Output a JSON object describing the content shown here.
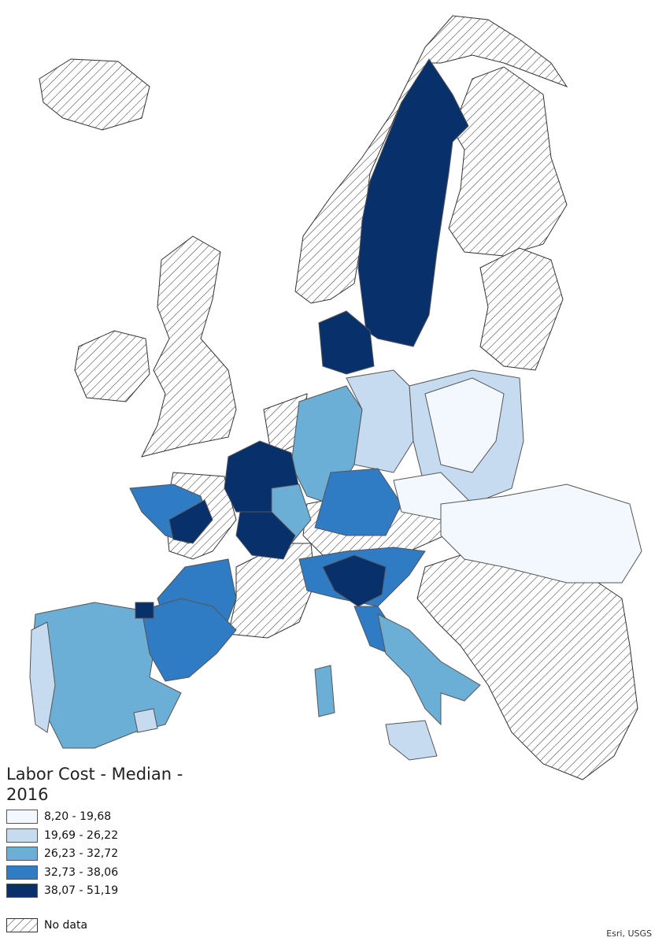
{
  "legend": {
    "title": "Labor Cost - Median - 2016",
    "classes": [
      {
        "label": "8,20 - 19,68",
        "color": "#f3f8fe"
      },
      {
        "label": "19,69 - 26,22",
        "color": "#c6dbef"
      },
      {
        "label": "26,23 - 32,72",
        "color": "#6baed6"
      },
      {
        "label": "32,73 - 38,06",
        "color": "#2f7bc4"
      },
      {
        "label": "38,07 - 51,19",
        "color": "#08306b"
      }
    ],
    "no_data": "No data"
  },
  "attribution": "Esri, USGS"
}
